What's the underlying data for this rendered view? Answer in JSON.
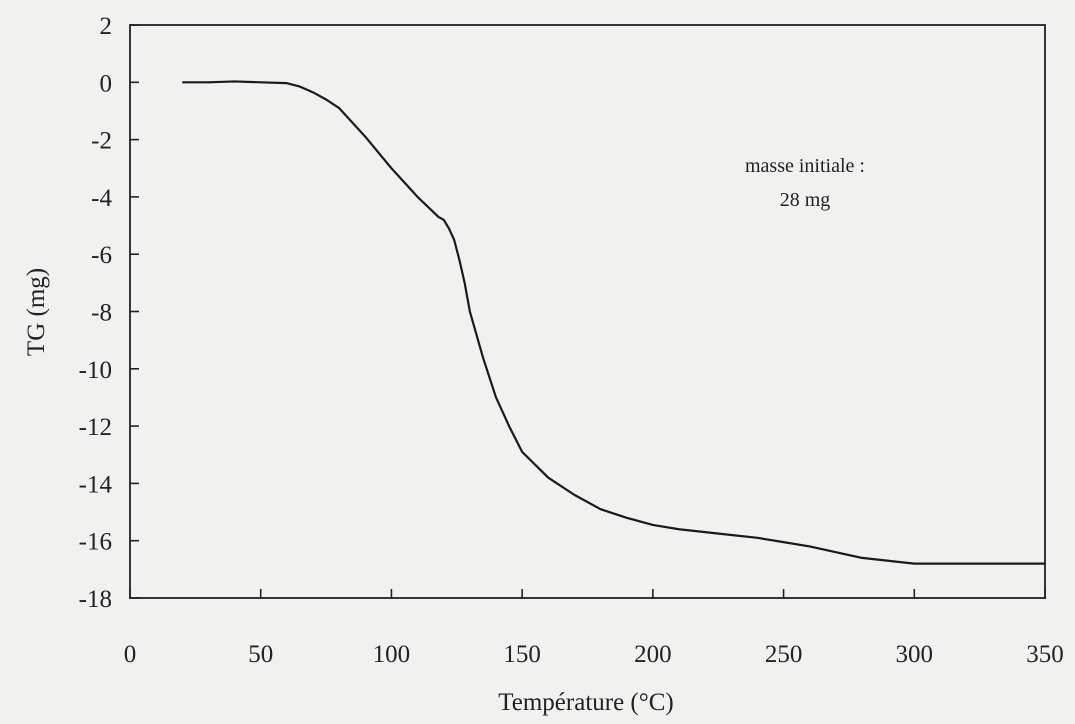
{
  "chart_data": {
    "type": "line",
    "title": "",
    "xlabel": "Température (°C)",
    "ylabel": "TG (mg)",
    "xlim": [
      0,
      350
    ],
    "ylim": [
      -18,
      2
    ],
    "x_ticks": [
      0,
      50,
      100,
      150,
      200,
      250,
      300,
      350
    ],
    "x_tick_labels": [
      "0",
      "50",
      "100",
      "150",
      "200",
      "250",
      "300",
      "350"
    ],
    "y_ticks": [
      2,
      0,
      -2,
      -4,
      -6,
      -8,
      -10,
      -12,
      -14,
      -16,
      -18
    ],
    "y_tick_labels": [
      "2",
      "0",
      "-2",
      "-4",
      "-6",
      "-8",
      "-10",
      "-12",
      "-14",
      "-16",
      "-18"
    ],
    "grid": false,
    "legend": "none",
    "annotation": {
      "line1": "masse initiale :",
      "line2": "28 mg"
    },
    "series": [
      {
        "x": [
          20,
          30,
          40,
          50,
          60,
          65,
          70,
          75,
          80,
          90,
          100,
          110,
          118,
          120,
          122,
          124,
          126,
          128,
          130,
          135,
          140,
          145,
          150,
          160,
          170,
          180,
          190,
          200,
          210,
          220,
          230,
          240,
          250,
          260,
          270,
          280,
          290,
          300,
          310,
          320,
          330,
          340,
          350
        ],
        "y": [
          0,
          0,
          0.03,
          0,
          -0.03,
          -0.15,
          -0.35,
          -0.6,
          -0.9,
          -1.9,
          -3.0,
          -4.0,
          -4.7,
          -4.8,
          -5.1,
          -5.5,
          -6.2,
          -7.0,
          -8.0,
          -9.6,
          -11.0,
          -12.0,
          -12.9,
          -13.8,
          -14.4,
          -14.9,
          -15.2,
          -15.45,
          -15.6,
          -15.7,
          -15.8,
          -15.9,
          -16.05,
          -16.2,
          -16.4,
          -16.6,
          -16.7,
          -16.8,
          -16.8,
          -16.8,
          -16.8,
          -16.8,
          -16.8
        ],
        "color": "#1a1a1a"
      }
    ]
  }
}
